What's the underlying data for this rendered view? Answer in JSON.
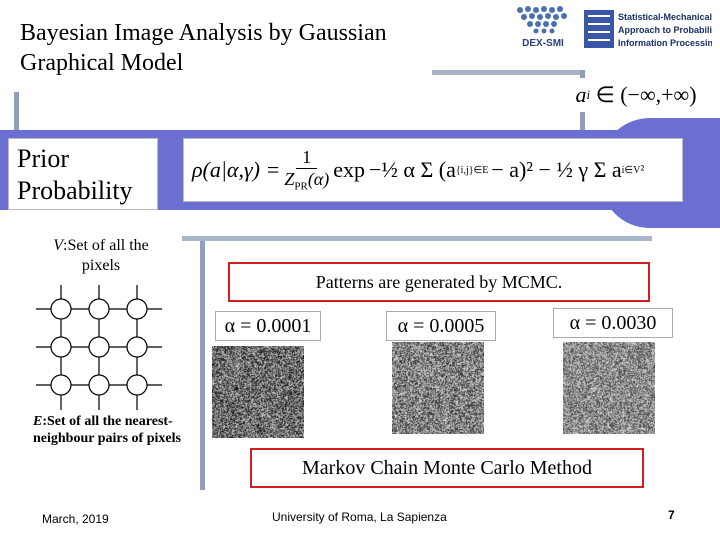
{
  "title": "Bayesian Image Analysis by Gaussian Graphical Model",
  "logos": {
    "dex": "DEX-SMI",
    "smapip_lines": [
      "Statistical-Mechanical",
      "Approach to Probabilistic",
      "Information Processing"
    ]
  },
  "range": {
    "var": "a",
    "sub": "i",
    "text": "∈ (−∞,+∞)"
  },
  "prior_label": "Prior Probability",
  "formula": {
    "lhs": "ρ(a|α,γ) =",
    "frac1_num": "1",
    "frac1_den": "Z",
    "frac1_den_sub": "PR",
    "frac1_den_tail": "(α)",
    "exp": "exp",
    "body": "−½ α Σ (a",
    "sum1_sub": "{i,j}∈E",
    "body2": "− a",
    "body3": ")² − ½ γ Σ a",
    "sum2_sub": "i∈V",
    "body4": "²"
  },
  "v_label": {
    "symbol": "V",
    "text": ":Set of all the pixels"
  },
  "e_label": {
    "symbol": "E",
    "text": ":Set of all the nearest-neighbour pairs of pixels"
  },
  "mcmc_caption": "Patterns are generated by MCMC.",
  "alphas": [
    "α = 0.0001",
    "α = 0.0005",
    "α = 0.0030"
  ],
  "markov_caption": "Markov Chain Monte Carlo Method",
  "footer": {
    "date": "March, 2019",
    "venue": "University of Roma, La Sapienza",
    "page": "7"
  }
}
